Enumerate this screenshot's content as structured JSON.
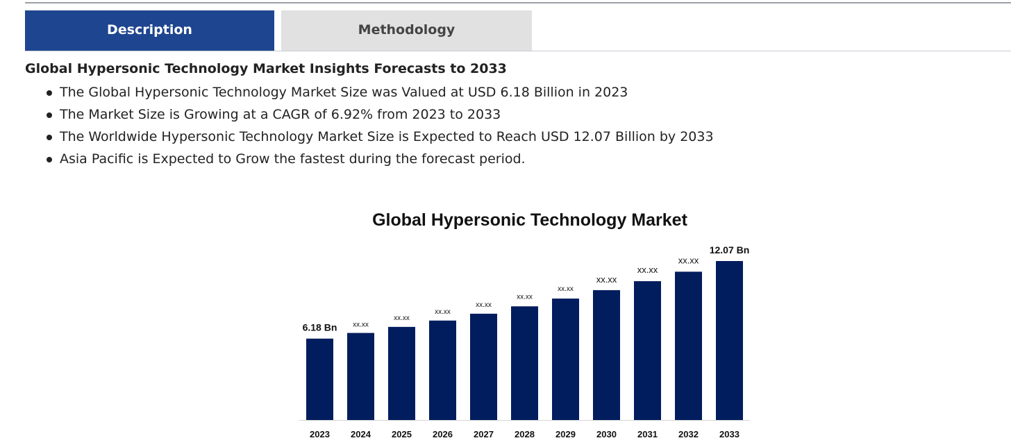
{
  "tabs": [
    {
      "label": "Description",
      "active": true
    },
    {
      "label": "Methodology",
      "active": false
    }
  ],
  "content": {
    "title": "Global Hypersonic Technology Market Insights Forecasts to 2033",
    "bullets": [
      "The Global Hypersonic Technology Market Size was Valued at USD 6.18 Billion in 2023",
      "The Market Size is Growing at a CAGR of 6.92% from 2023 to 2033",
      "The Worldwide Hypersonic Technology Market Size is Expected to Reach USD 12.07 Billion by 2033",
      "Asia Pacific is Expected to Grow the fastest during the forecast period."
    ]
  },
  "colors": {
    "active_tab": "#1e4590",
    "inactive_tab": "#e1e1e1",
    "bar": "#021d5e"
  },
  "chart_data": {
    "type": "bar",
    "title": "Global Hypersonic Technology Market",
    "categories": [
      "2023",
      "2024",
      "2025",
      "2026",
      "2027",
      "2028",
      "2029",
      "2030",
      "2031",
      "2032",
      "2033"
    ],
    "values": [
      6.18,
      6.61,
      7.07,
      7.55,
      8.07,
      8.63,
      9.22,
      9.86,
      10.54,
      11.26,
      12.07
    ],
    "data_labels": [
      "6.18 Bn",
      "xx.xx",
      "xx.xx",
      "xx.xx",
      "xx.xx",
      "xx.xx",
      "xx.xx",
      "xx.xx",
      "xx.xx",
      "xx.xx",
      "12.07 Bn"
    ],
    "xlabel": "",
    "ylabel": "",
    "grid": false,
    "legend": "none"
  }
}
